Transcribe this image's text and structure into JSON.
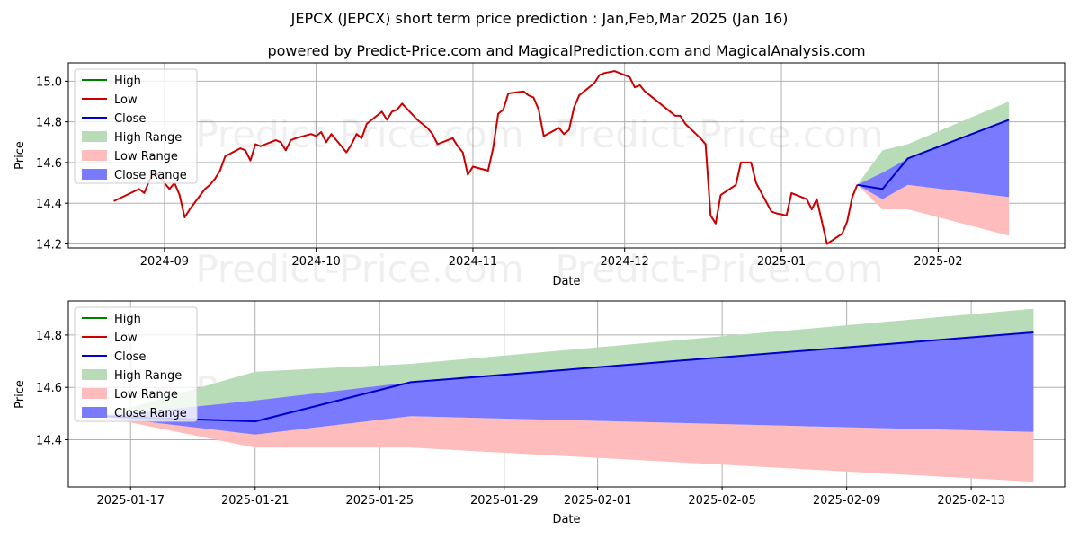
{
  "title": "JEPCX (JEPCX) short term price prediction : Jan,Feb,Mar 2025 (Jan 16)",
  "subtitle": "powered by Predict-Price.com and MagicalPrediction.com and MagicalAnalysis.com",
  "watermark": "Predict-Price.com",
  "colors": {
    "high": "#008000",
    "low": "#cc0000",
    "close": "#0000cc",
    "high_range": "#b7dcb7",
    "low_range": "#ffbcbc",
    "close_range": "#7a7aff"
  },
  "chart_data": [
    {
      "type": "line",
      "xlabel": "Date",
      "ylabel": "Price",
      "ylim": [
        14.18,
        15.09
      ],
      "xlim": [
        "2024-08-13",
        "2025-02-26"
      ],
      "x_ticks": [
        "2024-09",
        "2024-10",
        "2024-11",
        "2024-12",
        "2025-01",
        "2025-02"
      ],
      "y_ticks": [
        "14.2",
        "14.4",
        "14.6",
        "14.8",
        "15.0"
      ],
      "grid": true,
      "legend": {
        "position": "top-left",
        "entries": [
          "High",
          "Low",
          "Close",
          "High Range",
          "Low Range",
          "Close Range"
        ]
      },
      "history": {
        "name": "Low",
        "x": [
          "2024-08-22",
          "2024-08-27",
          "2024-08-28",
          "2024-08-29",
          "2024-08-30",
          "2024-09-02",
          "2024-09-03",
          "2024-09-04",
          "2024-09-05",
          "2024-09-06",
          "2024-09-09",
          "2024-09-10",
          "2024-09-11",
          "2024-09-12",
          "2024-09-13",
          "2024-09-16",
          "2024-09-17",
          "2024-09-18",
          "2024-09-19",
          "2024-09-20",
          "2024-09-23",
          "2024-09-24",
          "2024-09-25",
          "2024-09-26",
          "2024-09-27",
          "2024-09-30",
          "2024-10-01",
          "2024-10-02",
          "2024-10-03",
          "2024-10-04",
          "2024-10-07",
          "2024-10-08",
          "2024-10-09",
          "2024-10-10",
          "2024-10-11",
          "2024-10-14",
          "2024-10-15",
          "2024-10-16",
          "2024-10-17",
          "2024-10-18",
          "2024-10-21",
          "2024-10-22",
          "2024-10-23",
          "2024-10-24",
          "2024-10-25",
          "2024-10-28",
          "2024-10-29",
          "2024-10-30",
          "2024-10-31",
          "2024-11-01",
          "2024-11-04",
          "2024-11-05",
          "2024-11-06",
          "2024-11-07",
          "2024-11-08",
          "2024-11-11",
          "2024-11-12",
          "2024-11-13",
          "2024-11-14",
          "2024-11-15",
          "2024-11-18",
          "2024-11-19",
          "2024-11-20",
          "2024-11-21",
          "2024-11-22",
          "2024-11-25",
          "2024-11-26",
          "2024-11-27",
          "2024-11-29",
          "2024-12-02",
          "2024-12-03",
          "2024-12-04",
          "2024-12-05",
          "2024-12-06",
          "2024-12-09",
          "2024-12-10",
          "2024-12-11",
          "2024-12-12",
          "2024-12-13",
          "2024-12-16",
          "2024-12-17",
          "2024-12-18",
          "2024-12-19",
          "2024-12-20",
          "2024-12-23",
          "2024-12-24",
          "2024-12-26",
          "2024-12-27",
          "2024-12-30",
          "2024-12-31",
          "2025-01-02",
          "2025-01-03",
          "2025-01-06",
          "2025-01-07",
          "2025-01-08",
          "2025-01-10",
          "2025-01-13",
          "2025-01-14",
          "2025-01-15",
          "2025-01-16"
        ],
        "values": [
          14.41,
          14.47,
          14.45,
          14.51,
          14.56,
          14.47,
          14.5,
          14.44,
          14.33,
          14.37,
          14.47,
          14.49,
          14.52,
          14.56,
          14.63,
          14.67,
          14.66,
          14.61,
          14.69,
          14.68,
          14.71,
          14.7,
          14.66,
          14.71,
          14.72,
          14.74,
          14.73,
          14.75,
          14.7,
          14.74,
          14.65,
          14.69,
          14.74,
          14.72,
          14.79,
          14.85,
          14.81,
          14.85,
          14.86,
          14.89,
          14.81,
          14.79,
          14.77,
          14.74,
          14.69,
          14.72,
          14.68,
          14.65,
          14.54,
          14.58,
          14.56,
          14.67,
          14.84,
          14.86,
          14.94,
          14.95,
          14.93,
          14.92,
          14.86,
          14.73,
          14.77,
          14.74,
          14.76,
          14.87,
          14.93,
          14.99,
          15.03,
          15.04,
          15.05,
          15.02,
          14.97,
          14.98,
          14.95,
          14.93,
          14.87,
          14.85,
          14.83,
          14.83,
          14.79,
          14.72,
          14.69,
          14.34,
          14.3,
          14.44,
          14.49,
          14.6,
          14.6,
          14.5,
          14.36,
          14.35,
          14.34,
          14.45,
          14.42,
          14.37,
          14.42,
          14.2,
          14.25,
          14.31,
          14.43,
          14.49
        ]
      },
      "forecast": {
        "x": [
          "2025-01-16",
          "2025-01-21",
          "2025-01-26",
          "2025-02-15"
        ],
        "close": [
          14.49,
          14.47,
          14.62,
          14.81
        ],
        "high_range": {
          "upper": [
            14.49,
            14.66,
            14.69,
            14.9
          ],
          "lower": [
            14.49,
            14.55,
            14.62,
            14.81
          ]
        },
        "low_range": {
          "upper": [
            14.49,
            14.42,
            14.49,
            14.43
          ],
          "lower": [
            14.49,
            14.37,
            14.37,
            14.24
          ]
        },
        "close_range": {
          "upper": [
            14.49,
            14.55,
            14.62,
            14.81
          ],
          "lower": [
            14.49,
            14.42,
            14.49,
            14.43
          ]
        }
      }
    },
    {
      "type": "line",
      "xlabel": "Date",
      "ylabel": "Price",
      "ylim": [
        14.22,
        14.93
      ],
      "xlim": [
        "2025-01-15",
        "2025-02-16"
      ],
      "x_ticks": [
        "2025-01-17",
        "2025-01-21",
        "2025-01-25",
        "2025-01-29",
        "2025-02-01",
        "2025-02-05",
        "2025-02-09",
        "2025-02-13"
      ],
      "y_ticks": [
        "14.4",
        "14.6",
        "14.8"
      ],
      "grid": true,
      "legend": {
        "position": "top-left",
        "entries": [
          "High",
          "Low",
          "Close",
          "High Range",
          "Low Range",
          "Close Range"
        ]
      },
      "forecast": {
        "x": [
          "2025-01-16",
          "2025-01-21",
          "2025-01-26",
          "2025-02-15"
        ],
        "close": [
          14.49,
          14.47,
          14.62,
          14.81
        ],
        "high_range": {
          "upper": [
            14.49,
            14.66,
            14.69,
            14.9
          ],
          "lower": [
            14.49,
            14.55,
            14.62,
            14.81
          ]
        },
        "low_range": {
          "upper": [
            14.49,
            14.42,
            14.49,
            14.43
          ],
          "lower": [
            14.49,
            14.37,
            14.37,
            14.24
          ]
        },
        "close_range": {
          "upper": [
            14.49,
            14.55,
            14.62,
            14.81
          ],
          "lower": [
            14.49,
            14.42,
            14.49,
            14.43
          ]
        }
      }
    }
  ]
}
